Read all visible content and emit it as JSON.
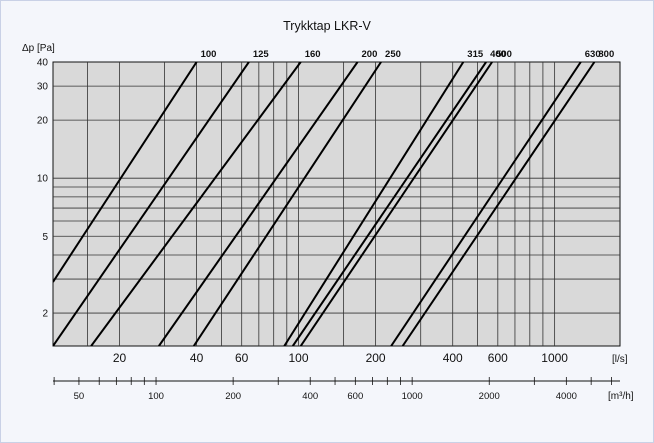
{
  "chart_data": {
    "type": "line",
    "title": "Trykktap LKR-V",
    "ylabel": "Δp [Pa]",
    "x_unit_primary": "[l/s]",
    "x_unit_secondary": "[m³/h]",
    "x_scale": "log",
    "y_scale": "log",
    "xlim": [
      11,
      1800
    ],
    "ylim": [
      1.35,
      40
    ],
    "grid": true,
    "y_ticks": [
      "2",
      "5",
      "10",
      "20",
      "30",
      "40"
    ],
    "y_tick_values": [
      2,
      5,
      10,
      20,
      30,
      40
    ],
    "x_ticks_primary": [
      "20",
      "40",
      "60",
      "100",
      "200",
      "400",
      "600",
      "1000"
    ],
    "x_tick_values_primary": [
      20,
      40,
      60,
      100,
      200,
      400,
      600,
      1000
    ],
    "x_ticks_secondary": [
      "50",
      "100",
      "200",
      "400",
      "600",
      "1000",
      "2000",
      "4000"
    ],
    "x_tick_values_secondary": [
      50,
      100,
      200,
      400,
      600,
      1000,
      2000,
      4000
    ],
    "series": [
      {
        "name": "100",
        "x": [
          11,
          40
        ],
        "y": [
          2.9,
          40
        ]
      },
      {
        "name": "125",
        "x": [
          11,
          64
        ],
        "y": [
          1.35,
          40
        ]
      },
      {
        "name": "160",
        "x": [
          15.5,
          102
        ],
        "y": [
          1.35,
          40
        ]
      },
      {
        "name": "200",
        "x": [
          28.5,
          170
        ],
        "y": [
          1.35,
          40
        ]
      },
      {
        "name": "250",
        "x": [
          39,
          210
        ],
        "y": [
          1.35,
          40
        ]
      },
      {
        "name": "315",
        "x": [
          88,
          440
        ],
        "y": [
          1.35,
          40
        ]
      },
      {
        "name": "400",
        "x": [
          95,
          540
        ],
        "y": [
          1.35,
          40
        ]
      },
      {
        "name": "500",
        "x": [
          102,
          570
        ],
        "y": [
          1.35,
          40
        ]
      },
      {
        "name": "630",
        "x": [
          230,
          1265
        ],
        "y": [
          1.35,
          40
        ]
      },
      {
        "name": "800",
        "x": [
          255,
          1430
        ],
        "y": [
          1.35,
          40
        ]
      }
    ]
  }
}
